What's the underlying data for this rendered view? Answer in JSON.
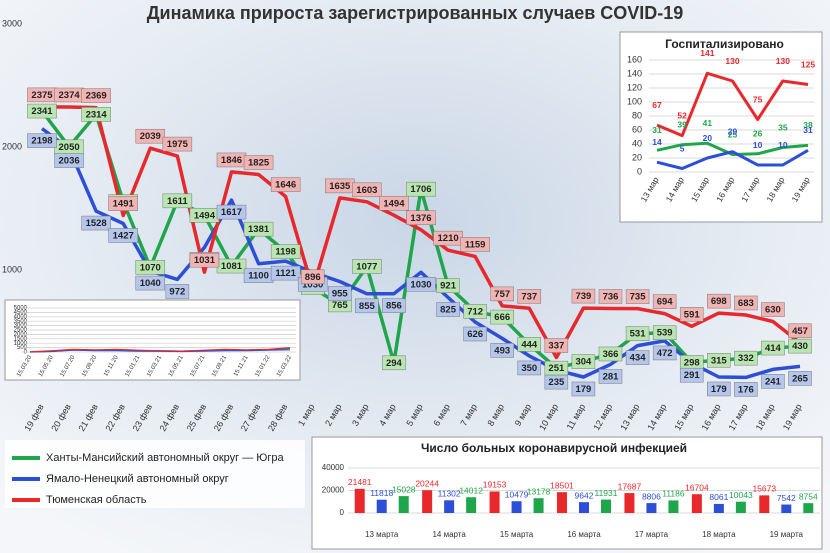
{
  "chart_data": [
    {
      "type": "line",
      "title": "Динамика прироста зарегистрированных случаев COVID-19",
      "categories": [
        "19 фев",
        "20 фев",
        "21 фев",
        "22 фев",
        "23 фев",
        "24 фев",
        "25 фев",
        "26 фев",
        "27 фев",
        "28 фев",
        "1 мар",
        "2 мар",
        "3 мар",
        "4 мар",
        "5 мар",
        "6 мар",
        "7 мар",
        "8 мар",
        "9 мар",
        "10 мар",
        "11 мар",
        "12 мар",
        "13 мар",
        "14 мар",
        "15 мар",
        "16 мар",
        "17 мар",
        "18 мар",
        "19 мар"
      ],
      "ylim": [
        0,
        3000
      ],
      "yticks": [
        1000,
        2000,
        3000
      ],
      "grid": false,
      "legend": "bottom-left",
      "data_labels": true,
      "series": [
        {
          "name": "Ханты-Мансийский автономный округ — Югра",
          "color": "#1fa64a",
          "label_bg": "#b9e6b0",
          "label_pos": "center",
          "values": [
            2341,
            2050,
            2314,
            1604,
            1070,
            1611,
            1494,
            1081,
            1381,
            1198,
            906,
            765,
            1077,
            294,
            1706,
            921,
            712,
            666,
            444,
            251,
            304,
            366,
            531,
            539,
            298,
            315,
            332,
            414,
            430
          ]
        },
        {
          "name": "Ямало-Ненецкий автономный округ",
          "color": "#2d4fd8",
          "label_bg": "#b4c6ec",
          "label_pos": "below",
          "values": [
            2198,
            2036,
            1528,
            1427,
            1040,
            972,
            1232,
            1617,
            1100,
            1121,
            1030,
            955,
            855,
            856,
            1030,
            825,
            626,
            493,
            350,
            235,
            179,
            281,
            434,
            472,
            291,
            179,
            176,
            241,
            265
          ]
        },
        {
          "name": "Тюменская область",
          "color": "#e8282b",
          "label_bg": "#f2b3b3",
          "label_pos": "above",
          "values": [
            2375,
            2374,
            2369,
            1491,
            2039,
            1975,
            1031,
            1846,
            1825,
            1646,
            896,
            1635,
            1603,
            1494,
            1376,
            1210,
            1159,
            757,
            737,
            337,
            739,
            736,
            735,
            694,
            591,
            698,
            683,
            630,
            457
          ]
        }
      ]
    },
    {
      "type": "line",
      "title": "Госпитализировано",
      "categories": [
        "13 мар",
        "14 мар",
        "15 мар",
        "16 мар",
        "17 мар",
        "18 мар",
        "19 мар"
      ],
      "ylim": [
        0,
        160
      ],
      "yticks": [
        0,
        20,
        40,
        60,
        80,
        100,
        120,
        140,
        160
      ],
      "grid": true,
      "data_labels": true,
      "series": [
        {
          "color": "#1fa64a",
          "values": [
            31,
            39,
            41,
            25,
            26,
            35,
            38
          ]
        },
        {
          "color": "#2d4fd8",
          "values": [
            14,
            5,
            20,
            29,
            10,
            10,
            31
          ]
        },
        {
          "color": "#e8282b",
          "values": [
            67,
            52,
            141,
            130,
            75,
            130,
            125
          ]
        }
      ]
    },
    {
      "type": "line",
      "categories": [
        "15.03.20",
        "15.05.20",
        "15.07.20",
        "15.09.20",
        "15.11.20",
        "15.01.21",
        "15.03.21",
        "15.05.21",
        "15.07.21",
        "15.09.21",
        "15.11.21",
        "15.01.22",
        "15.03.22"
      ],
      "ylim": [
        0,
        5000
      ],
      "yticks": [
        0,
        500,
        1000,
        1500,
        2000,
        2500,
        3000,
        3500,
        4000,
        4500,
        5000
      ],
      "grid": true,
      "data_labels": false,
      "series": [
        {
          "color": "#1fa64a",
          "values": [
            5,
            80,
            250,
            200,
            200,
            150,
            120,
            100,
            150,
            200,
            200,
            250,
            400
          ]
        },
        {
          "color": "#2d4fd8",
          "values": [
            5,
            60,
            200,
            150,
            150,
            100,
            80,
            60,
            100,
            150,
            150,
            200,
            250
          ]
        },
        {
          "color": "#e8282b",
          "values": [
            10,
            150,
            300,
            250,
            300,
            200,
            150,
            100,
            200,
            300,
            250,
            300,
            500
          ]
        }
      ]
    },
    {
      "type": "bar",
      "title": "Число больных коронавирусной инфекцией",
      "categories": [
        "13 марта",
        "14 марта",
        "15 марта",
        "16 марта",
        "17 марта",
        "18 марта",
        "19 марта"
      ],
      "ylim": [
        0,
        40000
      ],
      "yticks": [
        0,
        20000,
        40000
      ],
      "grid": true,
      "series": [
        {
          "color": "#e8282b",
          "values": [
            21481,
            20244,
            19153,
            18501,
            17687,
            16704,
            15673
          ]
        },
        {
          "color": "#2d4fd8",
          "values": [
            11818,
            11302,
            10479,
            9642,
            8806,
            8061,
            7542
          ]
        },
        {
          "color": "#1fa64a",
          "values": [
            15028,
            14012,
            13178,
            11931,
            11186,
            10043,
            8754
          ]
        }
      ]
    }
  ]
}
